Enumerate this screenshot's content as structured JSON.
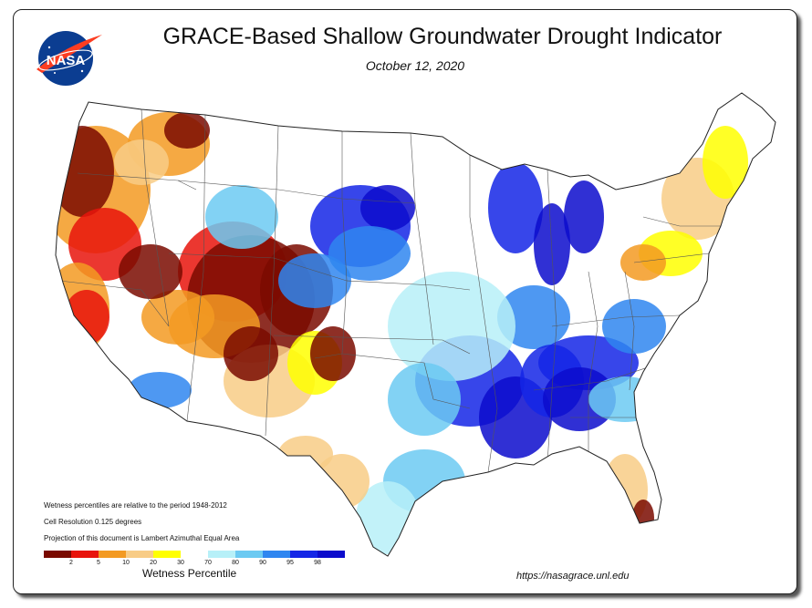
{
  "header": {
    "title": "GRACE-Based Shallow Groundwater Drought Indicator",
    "date": "October 12, 2020",
    "logo_text": "NASA"
  },
  "notes": [
    "Wetness percentiles are relative to the period 1948-2012",
    "Cell Resolution 0.125 degrees",
    "Projection of this document is Lambert Azimuthal Equal Area"
  ],
  "legend": {
    "title": "Wetness Percentile",
    "colors": [
      "#7a0a00",
      "#e8140c",
      "#f39a22",
      "#f8cc86",
      "#ffff00",
      "#ffffff",
      "#b7f0f8",
      "#6ccaf2",
      "#2f86f0",
      "#1426e6",
      "#0c0ccc"
    ],
    "tick_labels": [
      "2",
      "5",
      "10",
      "20",
      "30",
      "70",
      "80",
      "90",
      "95",
      "98"
    ]
  },
  "footer": {
    "url": "https://nasagrace.unl.edu"
  }
}
